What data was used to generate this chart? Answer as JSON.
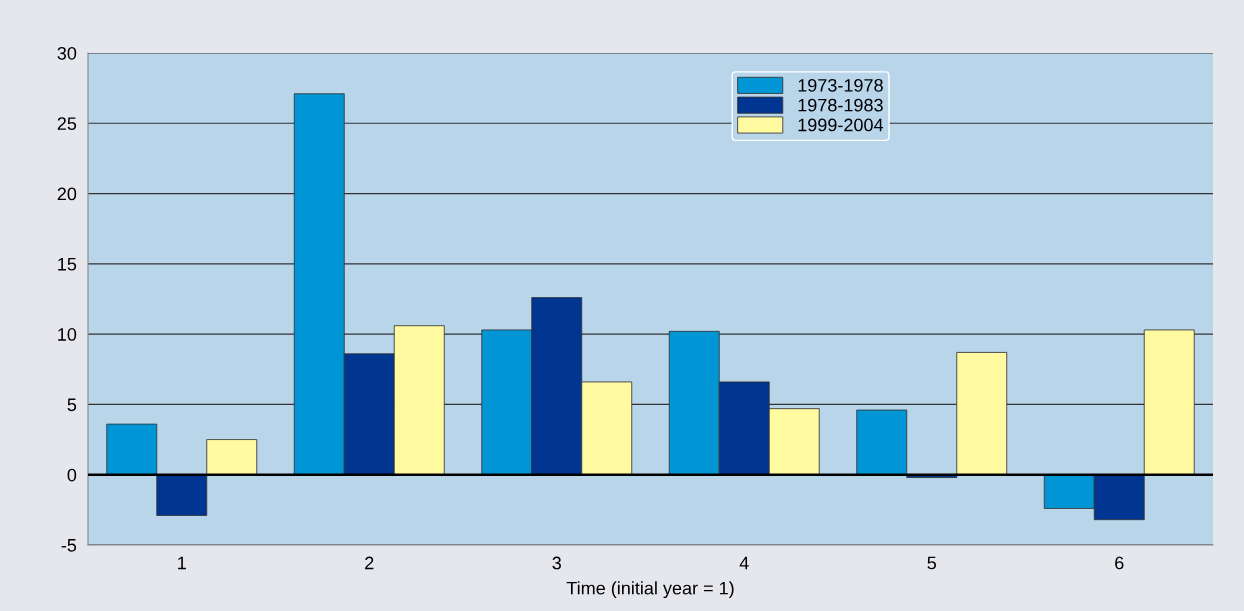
{
  "chart_data": {
    "type": "bar",
    "xlabel": "Time (initial year = 1)",
    "categories": [
      "1",
      "2",
      "3",
      "4",
      "5",
      "6"
    ],
    "series": [
      {
        "name": "1973-1978",
        "color": "#0096d6",
        "values": [
          3.6,
          27.1,
          10.3,
          10.2,
          4.6,
          -2.4
        ]
      },
      {
        "name": "1978-1983",
        "color": "#003591",
        "values": [
          -2.9,
          8.6,
          12.6,
          6.6,
          -0.2,
          -3.2
        ]
      },
      {
        "name": "1999-2004",
        "color": "#fff9a0",
        "values": [
          2.5,
          10.6,
          6.6,
          4.7,
          8.7,
          10.3
        ]
      }
    ],
    "ylim": [
      -5,
      30
    ],
    "yticks": [
      -5,
      0,
      5,
      10,
      15,
      20,
      25,
      30
    ],
    "grid": "y",
    "legend": "top right"
  }
}
